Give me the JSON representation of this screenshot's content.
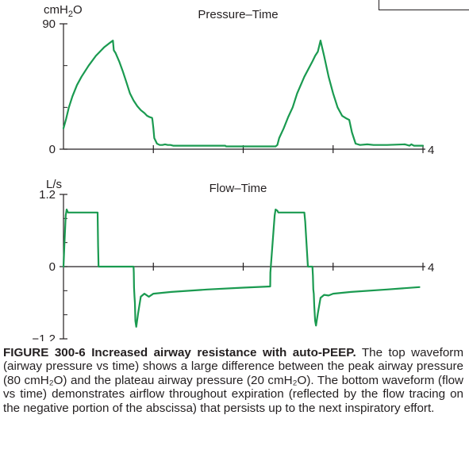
{
  "chart_data": [
    {
      "type": "line",
      "title": "Pressure–Time",
      "ylabel": "cmH2O",
      "ylabel_html": "cmH<sub>2</sub>O",
      "yticks": [
        0,
        90
      ],
      "ylim": [
        0,
        90
      ],
      "xlim": [
        0,
        4
      ],
      "xtick_labels": [
        "4"
      ],
      "color": "#1a9a50",
      "series": [
        {
          "x": [
            0.0,
            0.03,
            0.06,
            0.1,
            0.15,
            0.2,
            0.28,
            0.36,
            0.45,
            0.53,
            0.55,
            0.56,
            0.58,
            0.62,
            0.66,
            0.7,
            0.74,
            0.78,
            0.82,
            0.86,
            0.9,
            0.93,
            0.96,
            0.985,
            0.99,
            1.0,
            1.01,
            1.04,
            1.07,
            1.1,
            1.13,
            1.16,
            1.19,
            1.22,
            1.3,
            1.45,
            1.6,
            1.8,
            1.81,
            2.0,
            2.2,
            2.36,
            2.38,
            2.4,
            2.45,
            2.5,
            2.55,
            2.6,
            2.68,
            2.77,
            2.8,
            2.83,
            2.86,
            2.9,
            2.95,
            3.0,
            3.05,
            3.1,
            3.15,
            3.18,
            3.21,
            3.25,
            3.3,
            3.38,
            3.45,
            3.6,
            3.8,
            3.85,
            3.87,
            3.9,
            4.0
          ],
          "y": [
            15,
            22,
            30,
            38,
            46,
            52,
            60,
            67,
            73,
            77,
            78,
            71,
            69,
            63,
            56,
            48,
            40,
            35,
            31,
            28,
            26,
            24,
            23,
            22.5,
            21,
            15,
            8,
            4,
            3,
            3,
            3.5,
            3,
            3,
            2.5,
            2.5,
            2.5,
            2.5,
            2.5,
            2,
            2,
            2,
            2,
            3,
            8,
            15,
            23,
            30,
            40,
            52,
            63,
            67,
            70,
            78,
            67,
            52,
            40,
            30,
            24,
            22,
            21,
            12,
            4,
            3,
            3.5,
            3,
            3,
            3.5,
            2.5,
            3.5,
            2.5,
            2.5
          ]
        }
      ]
    },
    {
      "type": "line",
      "title": "Flow–Time",
      "ylabel": "L/s",
      "ylabel_html": "L/s",
      "yticks": [
        -1.2,
        0,
        1.2
      ],
      "ylim": [
        -1.2,
        1.2
      ],
      "xlim": [
        0,
        4
      ],
      "xtick_labels": [
        "4"
      ],
      "color": "#1a9a50",
      "series": [
        {
          "x": [
            0.0,
            0.01,
            0.025,
            0.035,
            0.05,
            0.06,
            0.07,
            0.38,
            0.385,
            0.39,
            0.78,
            0.782,
            0.785,
            0.79,
            0.795,
            0.8,
            0.81,
            0.83,
            0.86,
            0.9,
            0.95,
            1.0,
            1.2,
            1.6,
            2.0,
            2.3,
            2.302,
            2.35,
            2.36,
            2.38,
            2.39,
            2.4,
            2.68,
            2.69,
            2.7,
            2.72,
            2.73,
            2.75,
            2.77,
            2.775,
            2.78,
            2.785,
            2.79,
            2.8,
            2.81,
            2.83,
            2.86,
            2.9,
            2.95,
            3.0,
            3.2,
            3.6,
            3.96
          ],
          "y": [
            0,
            0.35,
            0.85,
            0.95,
            0.9,
            0.9,
            0.9,
            0.9,
            0.35,
            0,
            0,
            -0.1,
            -0.35,
            -0.5,
            -0.6,
            -0.9,
            -1.0,
            -0.78,
            -0.5,
            -0.45,
            -0.5,
            -0.45,
            -0.42,
            -0.38,
            -0.35,
            -0.33,
            -0.1,
            0.85,
            0.95,
            0.93,
            0.9,
            0.9,
            0.9,
            0.75,
            0.48,
            0,
            0,
            0,
            0,
            -0.15,
            -0.38,
            -0.45,
            -0.65,
            -0.9,
            -0.98,
            -0.78,
            -0.52,
            -0.47,
            -0.48,
            -0.45,
            -0.42,
            -0.38,
            -0.34
          ]
        }
      ]
    }
  ],
  "caption": {
    "label": "FIGURE 300-6",
    "title": "Increased airway resistance with auto-PEEP.",
    "body": " The top waveform (airway pressure vs time) shows a large difference between the peak airway pressure (80 cmH₂O) and the plateau airway pressure (20 cmH₂O). The bottom waveform (flow vs time) demonstrates airflow throughout expiration (reflected by the flow tracing on the negative portion of the abscissa) that persists up to the next inspiratory effort."
  }
}
